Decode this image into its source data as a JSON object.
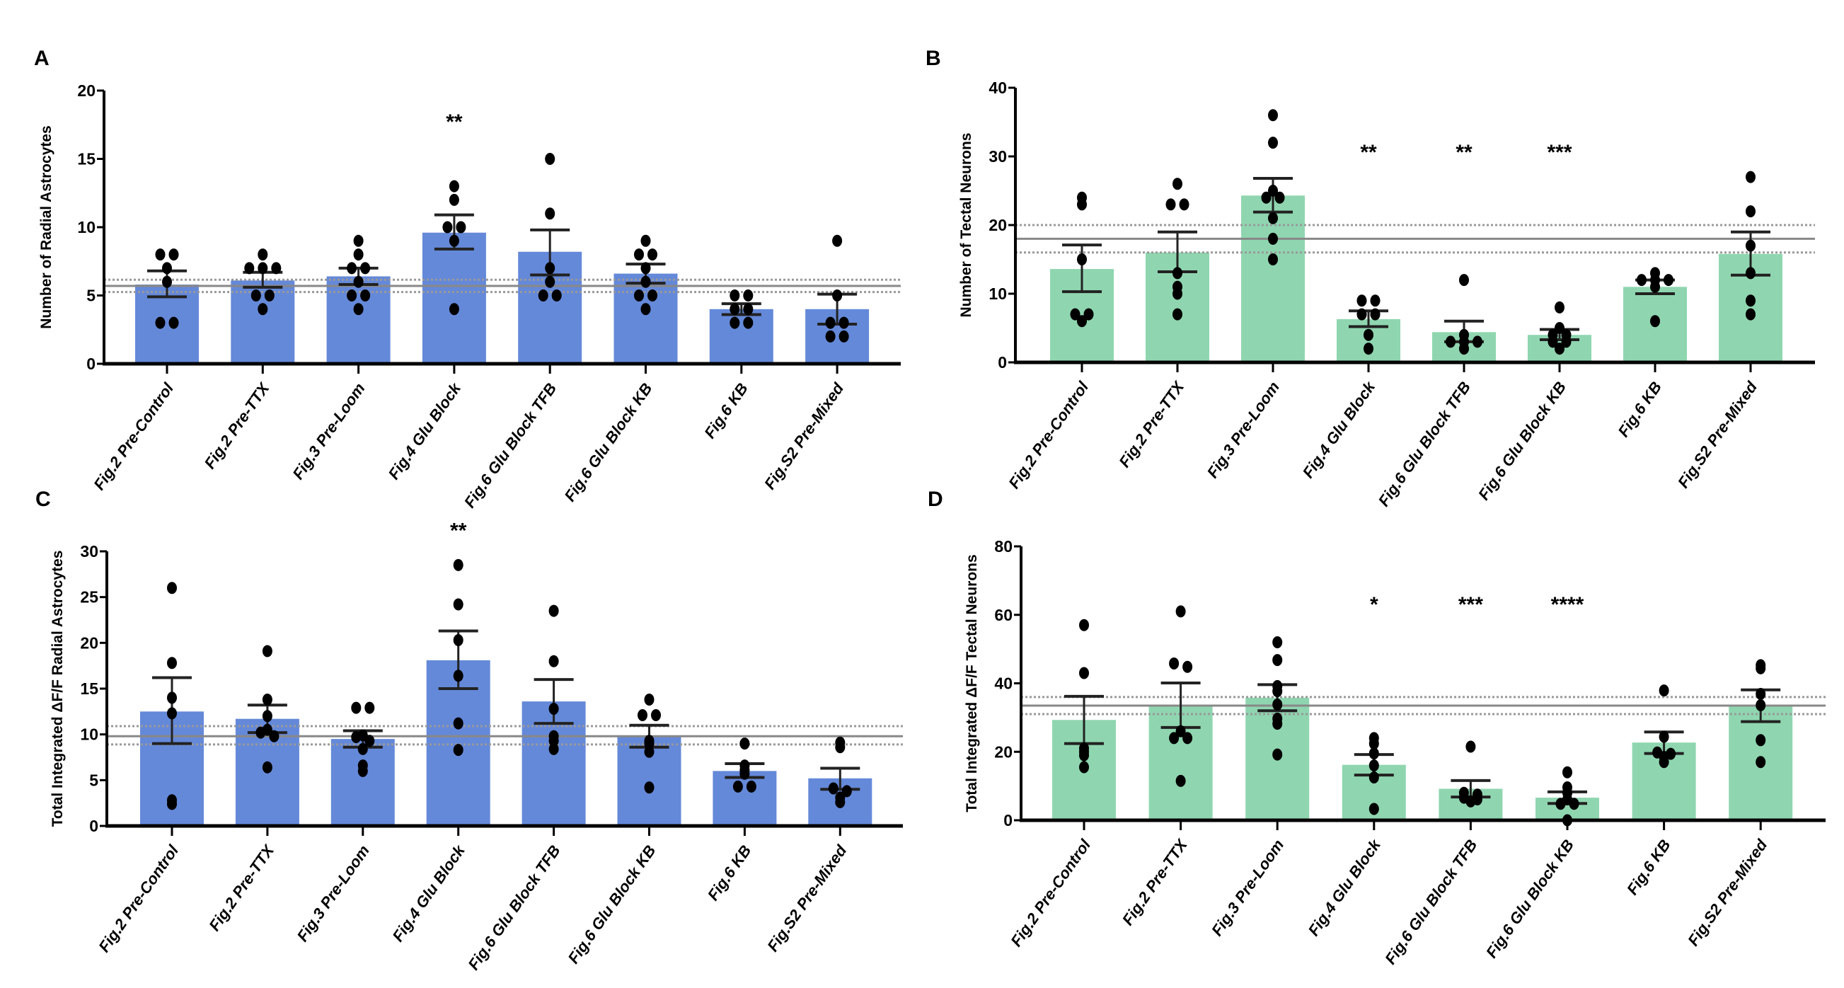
{
  "figure": {
    "categories": [
      "Fig.2 Pre-Control",
      "Fig.2 Pre-TTX",
      "Fig.3 Pre-Loom",
      "Fig.4 Glu Block",
      "Fig.6 Glu Block TFB",
      "Fig.6 Glu Block KB",
      "Fig.6 KB",
      "Fig.S2 Pre-Mixed"
    ],
    "colors": {
      "astrocyte_bar": "#6589D9",
      "neuron_bar": "#8FD6B0",
      "point": "#000000",
      "error_bar": "#222222",
      "reference_line": "#888888"
    }
  },
  "chart_data": [
    {
      "panel": "A",
      "type": "bar",
      "title": "",
      "xlabel": "",
      "ylabel": "Number of Radial Astrocytes",
      "ylim": [
        0,
        20
      ],
      "yticks": [
        0,
        5,
        10,
        15,
        20
      ],
      "grid": false,
      "legend": "none",
      "bar_color": "#6589D9",
      "categories": [
        "Fig.2 Pre-Control",
        "Fig.2 Pre-TTX",
        "Fig.3 Pre-Loom",
        "Fig.4 Glu Block",
        "Fig.6 Glu Block TFB",
        "Fig.6 Glu Block KB",
        "Fig.6 KB",
        "Fig.S2 Pre-Mixed"
      ],
      "values": [
        5.8,
        6.1,
        6.4,
        9.6,
        8.2,
        6.6,
        4.0,
        4.0
      ],
      "sem_low": [
        4.9,
        5.6,
        5.8,
        8.4,
        6.5,
        5.9,
        3.6,
        2.9
      ],
      "sem_high": [
        6.8,
        6.7,
        7.0,
        10.9,
        9.8,
        7.3,
        4.4,
        5.1
      ],
      "points": [
        [
          8,
          8,
          7,
          6,
          3,
          3
        ],
        [
          8,
          7,
          7,
          7,
          5,
          5,
          4
        ],
        [
          9,
          8,
          7,
          7,
          6,
          5,
          5,
          4
        ],
        [
          13,
          12,
          10,
          10,
          9,
          4
        ],
        [
          15,
          11,
          7,
          6,
          5,
          5
        ],
        [
          9,
          8,
          8,
          7,
          6,
          5,
          5,
          4
        ],
        [
          5,
          5,
          4,
          4,
          3,
          3
        ],
        [
          9,
          5,
          3,
          3,
          2,
          2
        ]
      ],
      "significance": [
        "",
        "",
        "",
        "**",
        "",
        "",
        "",
        ""
      ],
      "significance_y": 17.2,
      "reference": {
        "mean": 5.7,
        "ci_low": 5.25,
        "ci_high": 6.15
      }
    },
    {
      "panel": "B",
      "type": "bar",
      "title": "",
      "xlabel": "",
      "ylabel": "Number of Tectal Neurons",
      "ylim": [
        0,
        40
      ],
      "yticks": [
        0,
        10,
        20,
        30,
        40
      ],
      "grid": false,
      "legend": "none",
      "bar_color": "#8FD6B0",
      "categories": [
        "Fig.2 Pre-Control",
        "Fig.2 Pre-TTX",
        "Fig.3 Pre-Loom",
        "Fig.4 Glu Block",
        "Fig.6 Glu Block TFB",
        "Fig.6 Glu Block KB",
        "Fig.6 KB",
        "Fig.S2 Pre-Mixed"
      ],
      "values": [
        13.6,
        16.0,
        24.3,
        6.3,
        4.4,
        4.0,
        11.0,
        15.8
      ],
      "sem_low": [
        10.3,
        13.2,
        21.9,
        5.2,
        3.0,
        3.3,
        10.0,
        12.7
      ],
      "sem_high": [
        17.1,
        19.0,
        26.8,
        7.5,
        6.0,
        4.8,
        12.0,
        19.0
      ],
      "points": [
        [
          24,
          23,
          15,
          7,
          7,
          6
        ],
        [
          26,
          23,
          23,
          13,
          11,
          10,
          7
        ],
        [
          36,
          32,
          25,
          24,
          24,
          21,
          18,
          15
        ],
        [
          9,
          9,
          7,
          7,
          4,
          2
        ],
        [
          12,
          4,
          3,
          3,
          3,
          2
        ],
        [
          8,
          5,
          4,
          4,
          3,
          3,
          2
        ],
        [
          13,
          12,
          12,
          12,
          11,
          6
        ],
        [
          27,
          22,
          17,
          13,
          9,
          7
        ]
      ],
      "significance": [
        "",
        "",
        "",
        "**",
        "**",
        "***",
        "",
        ""
      ],
      "significance_y": 29.6,
      "reference": {
        "mean": 18,
        "ci_low": 16,
        "ci_high": 20
      }
    },
    {
      "panel": "C",
      "type": "bar",
      "title": "",
      "xlabel": "",
      "ylabel": "Total Integrated ΔF/F Radial Astrocytes",
      "ylim": [
        0,
        30
      ],
      "yticks": [
        0,
        5,
        10,
        15,
        20,
        25,
        30
      ],
      "grid": false,
      "legend": "none",
      "bar_color": "#6589D9",
      "categories": [
        "Fig.2 Pre-Control",
        "Fig.2 Pre-TTX",
        "Fig.3 Pre-Loom",
        "Fig.4 Glu Block",
        "Fig.6 Glu Block TFB",
        "Fig.6 Glu Block KB",
        "Fig.6 KB",
        "Fig.S2 Pre-Mixed"
      ],
      "values": [
        12.5,
        11.7,
        9.5,
        18.1,
        13.6,
        9.8,
        6.0,
        5.2
      ],
      "sem_low": [
        9.0,
        10.2,
        8.6,
        15.0,
        11.2,
        8.6,
        5.3,
        4.0
      ],
      "sem_high": [
        16.2,
        13.2,
        10.4,
        21.3,
        16.0,
        11.0,
        6.8,
        6.3
      ],
      "points": [
        [
          26.0,
          17.8,
          14.0,
          12.3,
          2.8,
          2.4
        ],
        [
          19.1,
          13.8,
          12.0,
          10.5,
          10.2,
          9.8,
          6.4
        ],
        [
          12.9,
          12.9,
          9.9,
          9.7,
          9.3,
          8.4,
          6.6,
          6.0
        ],
        [
          28.5,
          24.2,
          20.3,
          16.4,
          11.2,
          8.3
        ],
        [
          23.5,
          18.0,
          12.8,
          9.8,
          9.3,
          8.4
        ],
        [
          13.8,
          12.1,
          12.1,
          9.3,
          9.0,
          8.1,
          4.2
        ],
        [
          9.0,
          6.6,
          6.1,
          5.7,
          4.3,
          4.3
        ],
        [
          9.1,
          8.6,
          4.1,
          3.8,
          3.1,
          2.6
        ]
      ],
      "significance": [
        "",
        "",
        "",
        "**",
        "",
        "",
        "",
        ""
      ],
      "significance_y": 31.5,
      "reference": {
        "mean": 9.8,
        "ci_low": 8.9,
        "ci_high": 10.9
      }
    },
    {
      "panel": "D",
      "type": "bar",
      "title": "",
      "xlabel": "",
      "ylabel": "Total Integrated ΔF/F Tectal Neurons",
      "ylim": [
        0,
        80
      ],
      "yticks": [
        0,
        20,
        40,
        60,
        80
      ],
      "grid": false,
      "legend": "none",
      "bar_color": "#8FD6B0",
      "categories": [
        "Fig.2 Pre-Control",
        "Fig.2 Pre-TTX",
        "Fig.3 Pre-Loom",
        "Fig.4 Glu Block",
        "Fig.6 Glu Block TFB",
        "Fig.6 Glu Block KB",
        "Fig.6 KB",
        "Fig.S2 Pre-Mixed"
      ],
      "values": [
        29.3,
        33.5,
        35.8,
        16.2,
        9.2,
        6.6,
        22.7,
        33.5
      ],
      "sem_low": [
        22.4,
        27.1,
        32.0,
        13.2,
        6.8,
        4.9,
        19.5,
        28.8
      ],
      "sem_high": [
        36.2,
        40.1,
        39.6,
        19.2,
        11.6,
        8.3,
        25.8,
        38.1
      ],
      "points": [
        [
          57,
          43,
          21,
          20,
          19,
          15.5
        ],
        [
          61,
          45.8,
          44.8,
          26,
          24,
          24,
          11.5
        ],
        [
          52,
          46.8,
          39.2,
          37.7,
          33.8,
          29.7,
          28.2,
          19.2
        ],
        [
          24,
          22.4,
          19.5,
          16,
          12.5,
          3.3
        ],
        [
          21.5,
          8,
          7.5,
          6.6,
          6.1,
          5.5
        ],
        [
          14,
          9.6,
          8,
          6.1,
          4.8,
          4.8,
          0
        ],
        [
          37.9,
          24.4,
          19.8,
          19.4,
          18.5,
          17
        ],
        [
          45.3,
          44.4,
          36.9,
          33.6,
          23.4,
          17
        ]
      ],
      "significance": [
        "",
        "",
        "",
        "*",
        "***",
        "****",
        "",
        ""
      ],
      "significance_y": 61,
      "reference": {
        "mean": 33.5,
        "ci_low": 31,
        "ci_high": 36
      }
    }
  ]
}
